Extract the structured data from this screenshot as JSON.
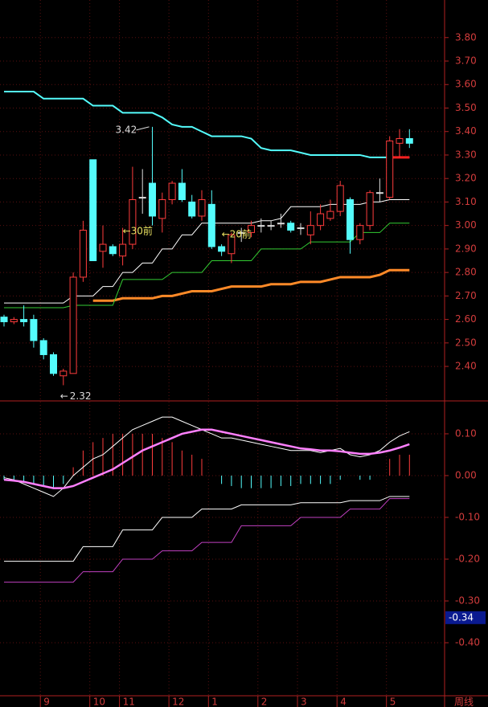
{
  "chart_data": [
    {
      "type": "candlestick",
      "categories": [
        null,
        null,
        null,
        null,
        "9",
        null,
        null,
        null,
        null,
        "10",
        null,
        null,
        "11",
        null,
        null,
        null,
        null,
        "12",
        null,
        null,
        null,
        "1",
        null,
        null,
        null,
        null,
        "2",
        null,
        null,
        null,
        "3",
        null,
        null,
        null,
        "4",
        null,
        null,
        null,
        null,
        "5",
        null,
        null
      ],
      "open": [
        2.61,
        2.59,
        2.6,
        2.6,
        2.51,
        2.45,
        2.36,
        2.37,
        2.78,
        3.28,
        2.89,
        2.91,
        2.87,
        2.92,
        3.12,
        3.18,
        3.03,
        3.11,
        3.18,
        3.1,
        3.04,
        3.09,
        2.91,
        2.88,
        2.97,
        2.97,
        3.0,
        3.0,
        3.01,
        3.01,
        2.99,
        2.96,
        3.0,
        3.03,
        3.06,
        3.11,
        2.94,
        3.0,
        3.14,
        3.12,
        3.35,
        3.37
      ],
      "high": [
        2.62,
        2.61,
        2.66,
        2.62,
        2.52,
        2.46,
        2.39,
        2.8,
        3.02,
        3.28,
        3.0,
        2.92,
        2.99,
        3.25,
        3.24,
        3.42,
        3.14,
        3.19,
        3.24,
        3.13,
        3.15,
        3.15,
        2.92,
        2.97,
        2.99,
        3.02,
        3.03,
        3.02,
        3.05,
        3.02,
        3.01,
        3.06,
        3.09,
        3.11,
        3.19,
        3.12,
        3.01,
        3.15,
        3.2,
        3.38,
        3.41,
        3.41
      ],
      "low": [
        2.57,
        2.58,
        2.57,
        2.48,
        2.43,
        2.36,
        2.32,
        2.37,
        2.76,
        2.85,
        2.82,
        2.87,
        2.83,
        2.9,
        3.05,
        3.0,
        2.97,
        3.09,
        3.1,
        3.03,
        3.02,
        2.9,
        2.87,
        2.84,
        2.93,
        2.95,
        2.97,
        2.98,
        2.99,
        2.97,
        2.96,
        2.92,
        2.98,
        3.02,
        3.04,
        2.88,
        2.92,
        2.98,
        3.1,
        3.11,
        3.29,
        3.33
      ],
      "close": [
        2.59,
        2.6,
        2.59,
        2.51,
        2.45,
        2.37,
        2.38,
        2.78,
        2.98,
        2.85,
        2.92,
        2.88,
        2.92,
        3.11,
        3.12,
        3.04,
        3.11,
        3.18,
        3.11,
        3.04,
        3.11,
        2.91,
        2.89,
        2.96,
        2.97,
        3.0,
        3.0,
        3.0,
        3.01,
        2.98,
        2.99,
        3.0,
        3.05,
        3.06,
        3.17,
        2.94,
        3.0,
        3.14,
        3.14,
        3.36,
        3.37,
        3.35
      ],
      "up_color": "#ff3c3c",
      "down_color": "#54fcfc",
      "flat_color": "#dddddd",
      "series": [
        {
          "color": "#54fcfc",
          "width": 2,
          "values": [
            3.57,
            3.57,
            3.57,
            3.57,
            3.54,
            3.54,
            3.54,
            3.54,
            3.54,
            3.51,
            3.51,
            3.51,
            3.48,
            3.48,
            3.48,
            3.48,
            3.46,
            3.43,
            3.42,
            3.42,
            3.4,
            3.38,
            3.38,
            3.38,
            3.38,
            3.37,
            3.33,
            3.32,
            3.32,
            3.32,
            3.31,
            3.3,
            3.3,
            3.3,
            3.3,
            3.3,
            3.3,
            3.29,
            3.29,
            3.29,
            3.29,
            3.29
          ]
        },
        {
          "color": "#ff8a28",
          "width": 3,
          "values": [
            null,
            null,
            null,
            null,
            null,
            null,
            null,
            null,
            null,
            2.68,
            2.68,
            2.68,
            2.69,
            2.69,
            2.69,
            2.69,
            2.7,
            2.7,
            2.71,
            2.72,
            2.72,
            2.72,
            2.73,
            2.74,
            2.74,
            2.74,
            2.74,
            2.75,
            2.75,
            2.75,
            2.76,
            2.76,
            2.76,
            2.77,
            2.78,
            2.78,
            2.78,
            2.78,
            2.79,
            2.81,
            2.81,
            2.81
          ]
        },
        {
          "color": "#ffffff",
          "width": 1,
          "values": [
            2.67,
            2.67,
            2.67,
            2.67,
            2.67,
            2.67,
            2.67,
            2.7,
            2.7,
            2.7,
            2.74,
            2.74,
            2.8,
            2.8,
            2.84,
            2.84,
            2.9,
            2.9,
            2.96,
            2.96,
            3.01,
            3.01,
            3.01,
            3.01,
            3.01,
            3.01,
            3.02,
            3.02,
            3.03,
            3.08,
            3.08,
            3.08,
            3.08,
            3.09,
            3.09,
            3.09,
            3.09,
            3.1,
            3.1,
            3.11,
            3.11,
            3.11
          ]
        },
        {
          "color": "#33cc33",
          "width": 1,
          "values": [
            2.65,
            2.65,
            2.65,
            2.65,
            2.65,
            2.65,
            2.65,
            2.66,
            2.66,
            2.66,
            2.66,
            2.66,
            2.77,
            2.77,
            2.77,
            2.77,
            2.77,
            2.8,
            2.8,
            2.8,
            2.8,
            2.85,
            2.85,
            2.85,
            2.85,
            2.85,
            2.9,
            2.9,
            2.9,
            2.9,
            2.9,
            2.93,
            2.93,
            2.93,
            2.93,
            2.93,
            2.97,
            2.97,
            2.97,
            3.01,
            3.01,
            3.01
          ]
        },
        {
          "color": "#ff2020",
          "width": 3,
          "values": [
            null,
            null,
            null,
            null,
            null,
            null,
            null,
            null,
            null,
            null,
            null,
            null,
            null,
            null,
            null,
            null,
            null,
            null,
            null,
            null,
            null,
            null,
            null,
            null,
            null,
            null,
            null,
            null,
            null,
            null,
            null,
            null,
            null,
            null,
            null,
            null,
            null,
            null,
            null,
            3.29,
            3.29,
            3.29
          ]
        }
      ],
      "high_label": 3.42,
      "low_label": 2.32,
      "notes": [
        "←30前",
        "←20前"
      ],
      "ylim": [
        2.26,
        3.96
      ],
      "yticks": [
        {
          "value": 2.4,
          "label": "2.40"
        },
        {
          "value": 2.5,
          "label": "2.50"
        },
        {
          "value": 2.6,
          "label": "2.60"
        },
        {
          "value": 2.7,
          "label": "2.70"
        },
        {
          "value": 2.8,
          "label": "2.80"
        },
        {
          "value": 2.9,
          "label": "2.90"
        },
        {
          "value": 3.0,
          "label": "3.00"
        },
        {
          "value": 3.1,
          "label": "3.10"
        },
        {
          "value": 3.2,
          "label": "3.20"
        },
        {
          "value": 3.3,
          "label": "3.30"
        },
        {
          "value": 3.4,
          "label": "3.40"
        },
        {
          "value": 3.5,
          "label": "3.50"
        },
        {
          "value": 3.6,
          "label": "3.60"
        },
        {
          "value": 3.7,
          "label": "3.70"
        },
        {
          "value": 3.8,
          "label": "3.80"
        }
      ],
      "grid": true,
      "period_label": "周线"
    },
    {
      "type": "macd",
      "histogram": [
        -0.01,
        -0.01,
        -0.015,
        -0.02,
        -0.025,
        -0.03,
        -0.02,
        0.02,
        0.06,
        0.08,
        0.09,
        0.1,
        0.1,
        0.1,
        0.1,
        0.1,
        0.09,
        0.08,
        0.06,
        0.05,
        0.04,
        0.0,
        -0.02,
        -0.025,
        -0.03,
        -0.03,
        -0.03,
        -0.03,
        -0.025,
        -0.025,
        -0.02,
        -0.02,
        -0.02,
        -0.02,
        -0.01,
        0.0,
        -0.01,
        -0.01,
        0.0,
        0.04,
        0.05,
        0.05
      ],
      "series": [
        {
          "color": "#ffffff",
          "width": 1,
          "values": [
            -0.005,
            -0.01,
            -0.02,
            -0.03,
            -0.04,
            -0.05,
            -0.03,
            0.0,
            0.02,
            0.04,
            0.05,
            0.07,
            0.09,
            0.11,
            0.12,
            0.13,
            0.14,
            0.14,
            0.13,
            0.12,
            0.11,
            0.1,
            0.09,
            0.09,
            0.085,
            0.08,
            0.075,
            0.07,
            0.065,
            0.06,
            0.06,
            0.06,
            0.055,
            0.06,
            0.065,
            0.05,
            0.045,
            0.05,
            0.06,
            0.08,
            0.095,
            0.105
          ]
        },
        {
          "color": "#ff80ff",
          "width": 2.5,
          "values": [
            -0.01,
            -0.012,
            -0.015,
            -0.02,
            -0.025,
            -0.03,
            -0.03,
            -0.025,
            -0.015,
            -0.005,
            0.005,
            0.015,
            0.03,
            0.045,
            0.06,
            0.07,
            0.08,
            0.09,
            0.1,
            0.105,
            0.11,
            0.11,
            0.105,
            0.1,
            0.095,
            0.09,
            0.085,
            0.08,
            0.075,
            0.07,
            0.065,
            0.063,
            0.06,
            0.06,
            0.058,
            0.055,
            0.052,
            0.052,
            0.055,
            0.06,
            0.067,
            0.075
          ]
        },
        {
          "color": "#ffffff",
          "width": 1,
          "values": [
            -0.205,
            -0.205,
            -0.205,
            -0.205,
            -0.205,
            -0.205,
            -0.205,
            -0.205,
            -0.17,
            -0.17,
            -0.17,
            -0.17,
            -0.13,
            -0.13,
            -0.13,
            -0.13,
            -0.1,
            -0.1,
            -0.1,
            -0.1,
            -0.08,
            -0.08,
            -0.08,
            -0.08,
            -0.07,
            -0.07,
            -0.07,
            -0.07,
            -0.07,
            -0.07,
            -0.065,
            -0.065,
            -0.065,
            -0.065,
            -0.065,
            -0.06,
            -0.06,
            -0.06,
            -0.06,
            -0.05,
            -0.05,
            -0.05
          ]
        },
        {
          "color": "#c040c0",
          "width": 1,
          "values": [
            -0.255,
            -0.255,
            -0.255,
            -0.255,
            -0.255,
            -0.255,
            -0.255,
            -0.255,
            -0.23,
            -0.23,
            -0.23,
            -0.23,
            -0.2,
            -0.2,
            -0.2,
            -0.2,
            -0.18,
            -0.18,
            -0.18,
            -0.18,
            -0.16,
            -0.16,
            -0.16,
            -0.16,
            -0.12,
            -0.12,
            -0.12,
            -0.12,
            -0.12,
            -0.12,
            -0.1,
            -0.1,
            -0.1,
            -0.1,
            -0.1,
            -0.08,
            -0.08,
            -0.08,
            -0.08,
            -0.055,
            -0.055,
            -0.055
          ]
        }
      ],
      "up_color": "#ff3c3c",
      "down_color": "#54fcfc",
      "current_value": -0.34,
      "ylim": [
        -0.525,
        0.173
      ],
      "yticks": [
        {
          "value": 0.1,
          "label": "0.10"
        },
        {
          "value": 0.0,
          "label": "0.00"
        },
        {
          "value": -0.1,
          "label": "-0.10"
        },
        {
          "value": -0.2,
          "label": "-0.20"
        },
        {
          "value": -0.3,
          "label": "-0.30"
        },
        {
          "value": -0.4,
          "label": "-0.40"
        }
      ],
      "grid": true
    }
  ]
}
